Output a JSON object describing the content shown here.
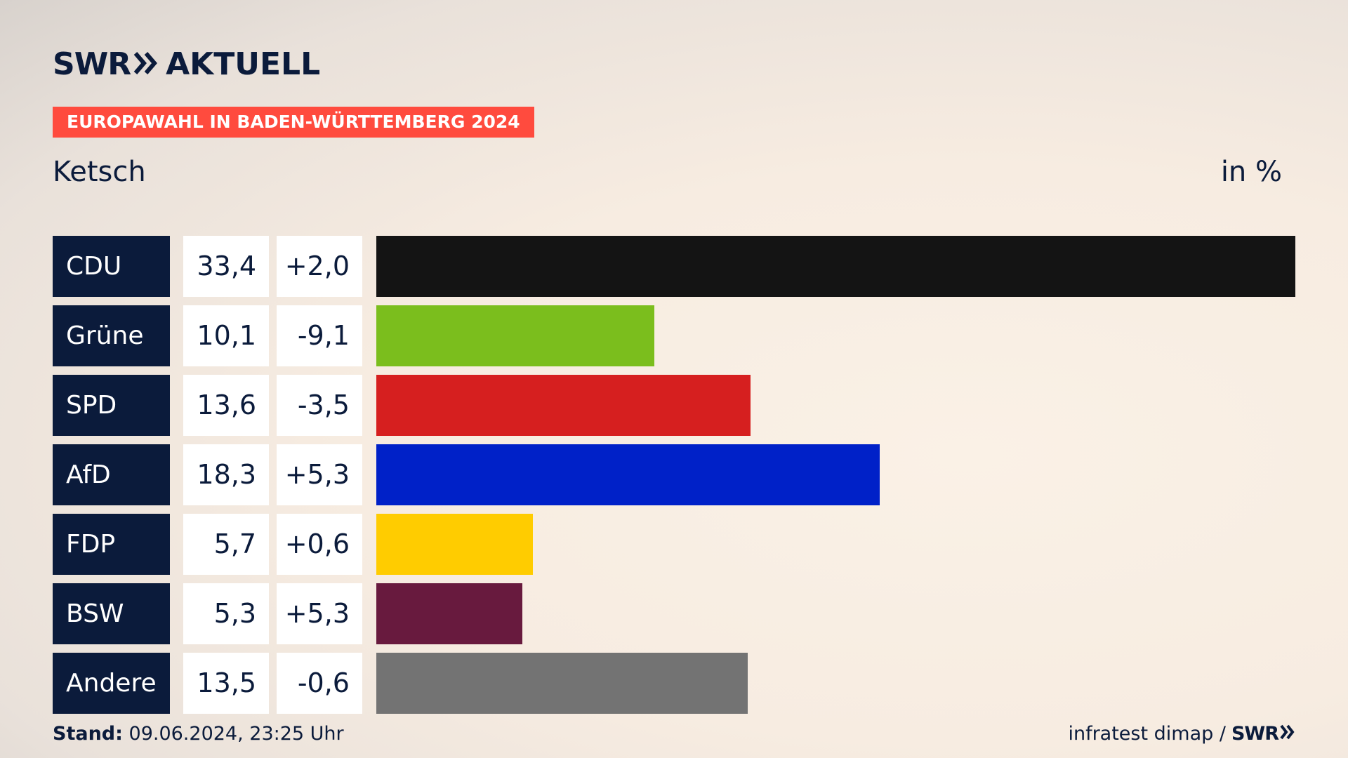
{
  "brand": {
    "swr": "SWR",
    "aktuell": "AKTUELL"
  },
  "tag": "EUROPAWAHL IN BADEN-WÜRTTEMBERG 2024",
  "place": "Ketsch",
  "unit": "in %",
  "footer": {
    "stand_label": "Stand:",
    "stand_value": "09.06.2024, 23:25 Uhr",
    "source_text": "infratest dimap /",
    "source_brand": "SWR"
  },
  "chart_data": {
    "type": "bar",
    "orientation": "horizontal",
    "xlim": [
      0,
      33.4
    ],
    "categories": [
      "CDU",
      "Grüne",
      "SPD",
      "AfD",
      "FDP",
      "BSW",
      "Andere"
    ],
    "values": [
      33.4,
      10.1,
      13.6,
      18.3,
      5.7,
      5.3,
      13.5
    ],
    "value_labels": [
      "33,4",
      "10,1",
      "13,6",
      "18,3",
      "5,7",
      "5,3",
      "13,5"
    ],
    "diff_labels": [
      "+2,0",
      "-9,1",
      "-3,5",
      "+5,3",
      "+0,6",
      "+5,3",
      "-0,6"
    ],
    "colors": [
      "#141414",
      "#7bbe1d",
      "#d61f1f",
      "#0021c8",
      "#ffcc00",
      "#681a3e",
      "#737373"
    ]
  }
}
